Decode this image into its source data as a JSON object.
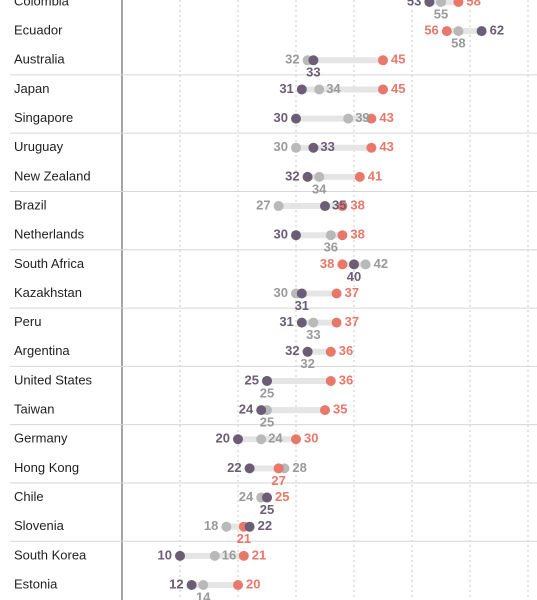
{
  "chart_data": {
    "type": "dot",
    "xlim": [
      0,
      70
    ],
    "grid_x": [
      10,
      20,
      30,
      40,
      50,
      60,
      70
    ],
    "colors": {
      "dark": "#6b5d75",
      "gray": "#b9b9b9",
      "salmon": "#e8786a",
      "connector": "#e5e5e5"
    },
    "groups": [
      {
        "rows": [
          {
            "country": "Colombia",
            "dark": 53,
            "gray": 55,
            "salmon": 58
          },
          {
            "country": "Ecuador",
            "dark": 62,
            "gray": 58,
            "salmon": 56
          },
          {
            "country": "Australia",
            "dark": 33,
            "gray": 32,
            "salmon": 45
          }
        ]
      },
      {
        "rows": [
          {
            "country": "Japan",
            "dark": 31,
            "gray": 34,
            "salmon": 45
          },
          {
            "country": "Singapore",
            "dark": 30,
            "gray": 39,
            "salmon": 43
          }
        ]
      },
      {
        "rows": [
          {
            "country": "Uruguay",
            "dark": 33,
            "gray": 30,
            "salmon": 43
          },
          {
            "country": "New Zealand",
            "dark": 32,
            "gray": 34,
            "salmon": 41
          }
        ]
      },
      {
        "rows": [
          {
            "country": "Brazil",
            "dark": 35,
            "gray": 27,
            "salmon": 38
          },
          {
            "country": "Netherlands",
            "dark": 30,
            "gray": 36,
            "salmon": 38
          }
        ]
      },
      {
        "rows": [
          {
            "country": "South Africa",
            "dark": 40,
            "gray": 42,
            "salmon": 38
          },
          {
            "country": "Kazakhstan",
            "dark": 31,
            "gray": 30,
            "salmon": 37
          }
        ]
      },
      {
        "rows": [
          {
            "country": "Peru",
            "dark": 31,
            "gray": 33,
            "salmon": 37
          },
          {
            "country": "Argentina",
            "dark": 32,
            "gray": 32,
            "salmon": 36
          }
        ]
      },
      {
        "rows": [
          {
            "country": "United States",
            "dark": 25,
            "gray": 25,
            "salmon": 36
          },
          {
            "country": "Taiwan",
            "dark": 24,
            "gray": 25,
            "salmon": 35
          }
        ]
      },
      {
        "rows": [
          {
            "country": "Germany",
            "dark": 20,
            "gray": 24,
            "salmon": 30
          },
          {
            "country": "Hong Kong",
            "dark": 22,
            "gray": 28,
            "salmon": 27
          }
        ]
      },
      {
        "rows": [
          {
            "country": "Chile",
            "dark": 25,
            "gray": 24,
            "salmon": 25
          },
          {
            "country": "Slovenia",
            "dark": 22,
            "gray": 18,
            "salmon": 21
          }
        ]
      },
      {
        "rows": [
          {
            "country": "South Korea",
            "dark": 10,
            "gray": 16,
            "salmon": 21
          },
          {
            "country": "Estonia",
            "dark": 12,
            "gray": 14,
            "salmon": 20
          }
        ]
      }
    ]
  }
}
